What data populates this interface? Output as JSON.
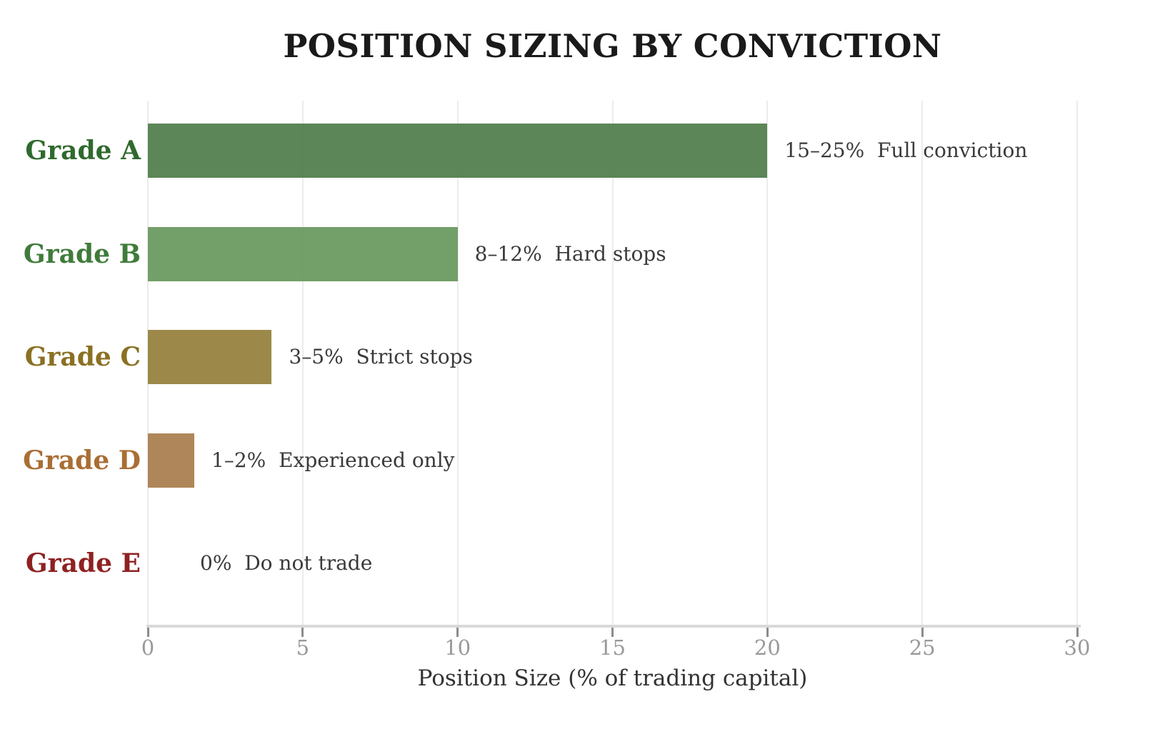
{
  "title": "POSITION SIZING BY CONVICTION",
  "chart_data": {
    "type": "bar",
    "orientation": "horizontal",
    "title": "POSITION SIZING BY CONVICTION",
    "xlabel": "Position Size (% of trading capital)",
    "xlim": [
      0,
      30
    ],
    "xticks": [
      0,
      5,
      10,
      15,
      20,
      25,
      30
    ],
    "grid": true,
    "legend": "none",
    "categories": [
      "Grade A",
      "Grade B",
      "Grade C",
      "Grade D",
      "Grade E"
    ],
    "values": [
      20,
      10,
      4,
      1.5,
      0
    ],
    "rows": [
      {
        "category": "Grade A",
        "value": 20,
        "annotation": "15–25%  Full conviction",
        "bar_color": "#53804f",
        "label_color": "#2f6a2e"
      },
      {
        "category": "Grade B",
        "value": 10,
        "annotation": "8–12%  Hard stops",
        "bar_color": "#6b9a60",
        "label_color": "#3f7b3a"
      },
      {
        "category": "Grade C",
        "value": 4,
        "annotation": "3–5%  Strict stops",
        "bar_color": "#97833f",
        "label_color": "#8a7022"
      },
      {
        "category": "Grade D",
        "value": 1.5,
        "annotation": "1–2%  Experienced only",
        "bar_color": "#ab7f50",
        "label_color": "#a96e33"
      },
      {
        "category": "Grade E",
        "value": 0,
        "annotation": "0%  Do not trade",
        "bar_color": null,
        "label_color": "#8e2121"
      }
    ],
    "colors": {
      "annotation_text": "#3a3a3a",
      "tick_label": "#999999",
      "axis_line": "#d9d9d9",
      "gridline": "#ececec",
      "tick_mark": "#8c8c8c",
      "title_text": "#1a1a1a",
      "xlabel_text": "#333333"
    }
  }
}
